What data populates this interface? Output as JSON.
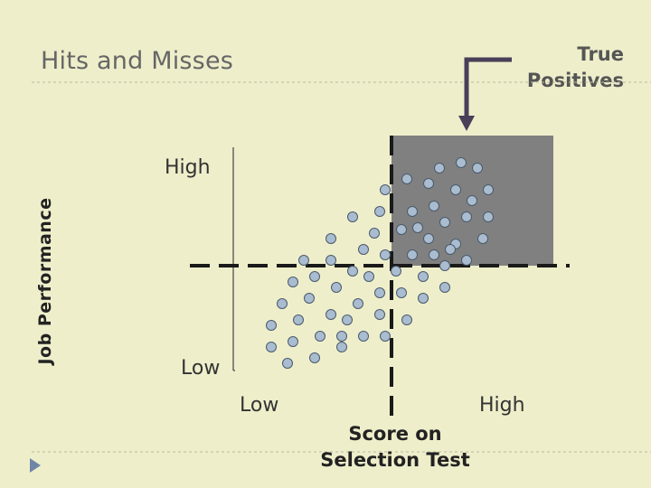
{
  "slide": {
    "title": "Hits and Misses",
    "callout": [
      "True",
      "Positives"
    ],
    "y_axis_label": "Job Performance",
    "y_high": "High",
    "y_low": "Low",
    "x_low": "Low",
    "x_high": "High",
    "x_axis_label": [
      "Score on",
      "Selection Test"
    ]
  },
  "colors": {
    "background": "#eeeecb",
    "quadrant": "#808080",
    "dot_fill": "#a9bcd0",
    "dot_stroke": "#4a5a6a",
    "line": "#1a1a1a",
    "arrow": "#4a3f58"
  },
  "icons": {
    "bullet": "triangle-bullet-icon"
  }
}
